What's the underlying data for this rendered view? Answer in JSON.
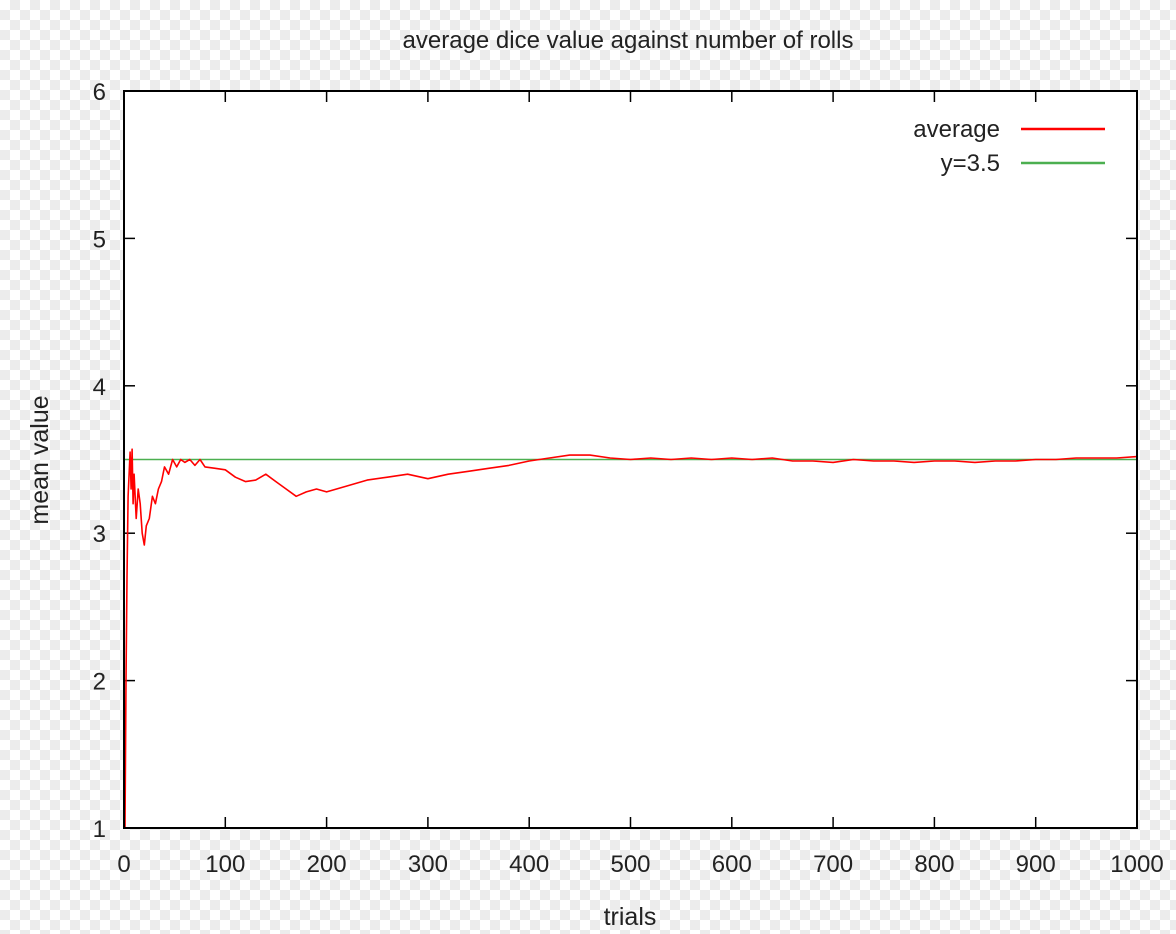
{
  "chart_data": {
    "type": "line",
    "title": "average dice value against number of rolls",
    "xlabel": "trials",
    "ylabel": "mean value",
    "xlim": [
      0,
      1000
    ],
    "ylim": [
      1,
      6
    ],
    "x_ticks": [
      "0",
      "100",
      "200",
      "300",
      "400",
      "500",
      "600",
      "700",
      "800",
      "900",
      "1000"
    ],
    "y_ticks": [
      "1",
      "2",
      "3",
      "4",
      "5",
      "6"
    ],
    "legend_position": "top-right",
    "series": [
      {
        "name": "average",
        "color": "#ff0000",
        "x": [
          1,
          2,
          3,
          4,
          5,
          6,
          7,
          8,
          9,
          10,
          12,
          14,
          16,
          18,
          20,
          22,
          25,
          28,
          31,
          34,
          37,
          40,
          44,
          48,
          52,
          56,
          60,
          65,
          70,
          75,
          80,
          90,
          100,
          110,
          120,
          130,
          140,
          150,
          160,
          170,
          180,
          190,
          200,
          220,
          240,
          260,
          280,
          300,
          320,
          340,
          360,
          380,
          400,
          420,
          440,
          460,
          480,
          500,
          520,
          540,
          560,
          580,
          600,
          620,
          640,
          660,
          680,
          700,
          720,
          740,
          760,
          780,
          800,
          820,
          840,
          860,
          880,
          900,
          920,
          940,
          960,
          980,
          1000
        ],
        "values": [
          1.0,
          2.0,
          2.7,
          3.25,
          3.4,
          3.55,
          3.3,
          3.57,
          3.2,
          3.4,
          3.1,
          3.3,
          3.2,
          3.0,
          2.92,
          3.05,
          3.1,
          3.25,
          3.2,
          3.3,
          3.35,
          3.45,
          3.4,
          3.5,
          3.45,
          3.5,
          3.48,
          3.5,
          3.46,
          3.5,
          3.45,
          3.44,
          3.43,
          3.38,
          3.35,
          3.36,
          3.4,
          3.35,
          3.3,
          3.25,
          3.28,
          3.3,
          3.28,
          3.32,
          3.36,
          3.38,
          3.4,
          3.37,
          3.4,
          3.42,
          3.44,
          3.46,
          3.49,
          3.51,
          3.53,
          3.53,
          3.51,
          3.5,
          3.51,
          3.5,
          3.51,
          3.5,
          3.51,
          3.5,
          3.51,
          3.49,
          3.49,
          3.48,
          3.5,
          3.49,
          3.49,
          3.48,
          3.49,
          3.49,
          3.48,
          3.49,
          3.49,
          3.5,
          3.5,
          3.51,
          3.51,
          3.51,
          3.52
        ]
      },
      {
        "name": "y=3.5",
        "color": "#4caf50",
        "x": [
          0,
          1000
        ],
        "values": [
          3.5,
          3.5
        ]
      }
    ]
  }
}
